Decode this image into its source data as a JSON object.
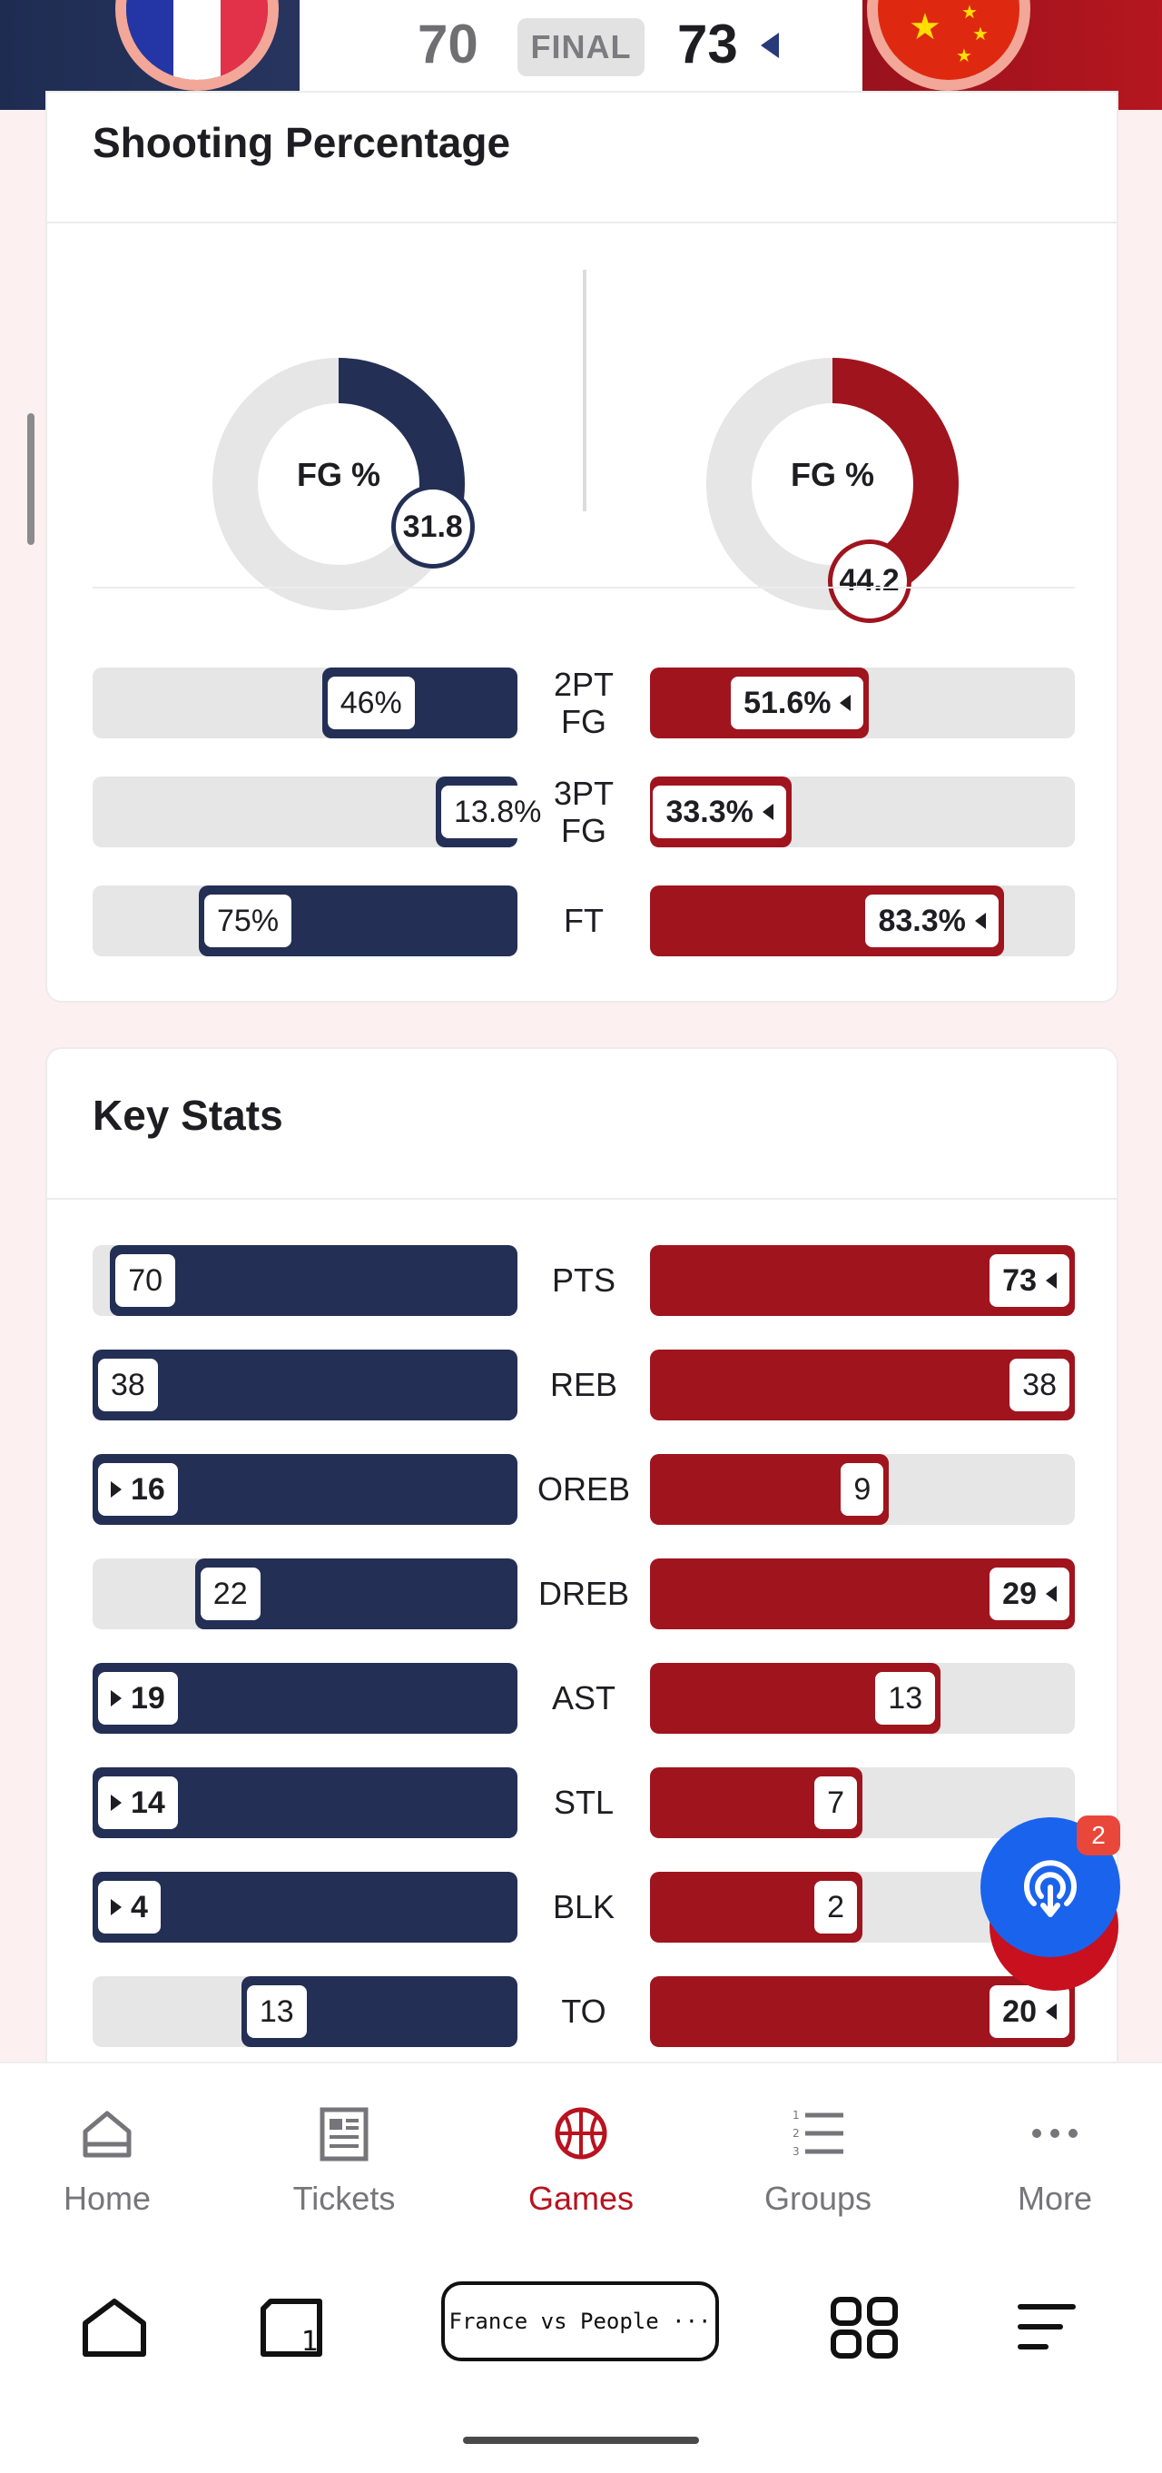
{
  "score": {
    "home_score": "70",
    "status": "FINAL",
    "away_score": "73",
    "colors": {
      "home": "#232f55",
      "away": "#a0141e"
    }
  },
  "shooting": {
    "title": "Shooting Percentage",
    "fg": {
      "home": {
        "label": "FG %",
        "value": "31.8",
        "percent": 31.8
      },
      "away": {
        "label": "FG %",
        "value": "44.2",
        "percent": 44.2
      }
    },
    "rows": [
      {
        "label": "2PT FG",
        "home": "46%",
        "away": "51.6%",
        "home_frac": 0.46,
        "away_frac": 0.516,
        "winner": "away"
      },
      {
        "label": "3PT FG",
        "home": "13.8%",
        "away": "33.3%",
        "home_frac": 0.138,
        "away_frac": 0.333,
        "winner": "away"
      },
      {
        "label": "FT",
        "home": "75%",
        "away": "83.3%",
        "home_frac": 0.75,
        "away_frac": 0.833,
        "winner": "away"
      }
    ]
  },
  "key_stats": {
    "title": "Key Stats",
    "rows": [
      {
        "label": "PTS",
        "home": "70",
        "away": "73",
        "home_frac": 0.959,
        "away_frac": 1.0,
        "winner": "away"
      },
      {
        "label": "REB",
        "home": "38",
        "away": "38",
        "home_frac": 1.0,
        "away_frac": 1.0,
        "winner": "none"
      },
      {
        "label": "OREB",
        "home": "16",
        "away": "9",
        "home_frac": 1.0,
        "away_frac": 0.5625,
        "winner": "home"
      },
      {
        "label": "DREB",
        "home": "22",
        "away": "29",
        "home_frac": 0.759,
        "away_frac": 1.0,
        "winner": "away"
      },
      {
        "label": "AST",
        "home": "19",
        "away": "13",
        "home_frac": 1.0,
        "away_frac": 0.684,
        "winner": "home"
      },
      {
        "label": "STL",
        "home": "14",
        "away": "7",
        "home_frac": 1.0,
        "away_frac": 0.5,
        "winner": "home"
      },
      {
        "label": "BLK",
        "home": "4",
        "away": "2",
        "home_frac": 1.0,
        "away_frac": 0.5,
        "winner": "home"
      },
      {
        "label": "TO",
        "home": "13",
        "away": "20",
        "home_frac": 0.65,
        "away_frac": 1.0,
        "winner": "away"
      }
    ]
  },
  "fab": {
    "icon": "podcast-icon",
    "badge": "2"
  },
  "bottom_nav": {
    "items": [
      {
        "label": "Home",
        "icon": "home-icon"
      },
      {
        "label": "Tickets",
        "icon": "tickets-icon"
      },
      {
        "label": "Games",
        "icon": "basketball-icon",
        "active": true
      },
      {
        "label": "Groups",
        "icon": "list-icon"
      },
      {
        "label": "More",
        "icon": "more-icon"
      }
    ]
  },
  "system_bar": {
    "tab_title": "France vs People ···"
  }
}
